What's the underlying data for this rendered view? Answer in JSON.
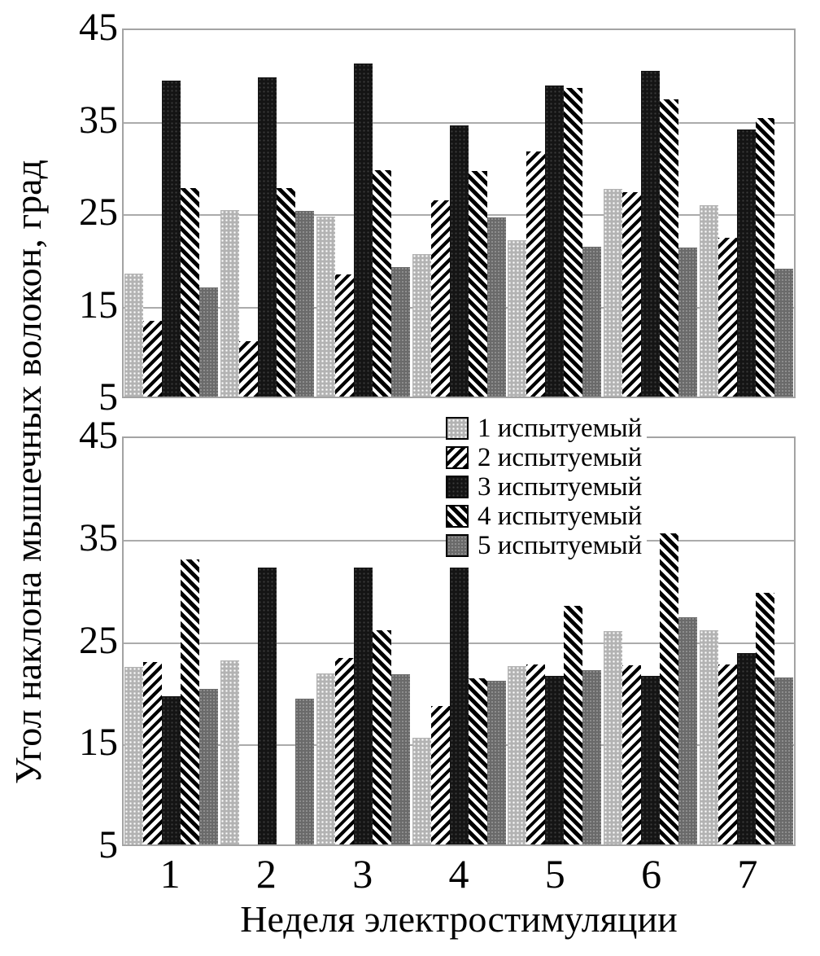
{
  "figure": {
    "y_axis_title": "Угол наклона мышечных волокон, град",
    "x_axis_title": "Неделя электростимуляции",
    "y_tick_labels": [
      "45",
      "35",
      "25",
      "15",
      "5"
    ],
    "x_tick_labels": [
      "1",
      "2",
      "3",
      "4",
      "5",
      "6",
      "7"
    ]
  },
  "legend": {
    "items": [
      {
        "label": "1 испытуемый",
        "pattern": "s1",
        "icon": "light-gray-dot-swatch-icon"
      },
      {
        "label": "2 испытуемый",
        "pattern": "s2",
        "icon": "forward-diagonal-hatch-swatch-icon"
      },
      {
        "label": "3 испытуемый",
        "pattern": "s3",
        "icon": "black-dot-swatch-icon"
      },
      {
        "label": "4 испытуемый",
        "pattern": "s4",
        "icon": "backward-diagonal-hatch-swatch-icon"
      },
      {
        "label": "5 испытуемый",
        "pattern": "s5",
        "icon": "dark-gray-dot-swatch-icon"
      }
    ]
  },
  "colors": {
    "background": "#ffffff",
    "text": "#000000",
    "plot_border": "#a3a3a3",
    "gridline": "#ababab",
    "series1_base": "#b3b3b3",
    "series1_dot": "#ffffff",
    "series2_stripe": "#000000",
    "series2_bg": "#ffffff",
    "series3_base": "#141414",
    "series3_dot": "#3c3c3c",
    "series4_stripe": "#000000",
    "series4_bg": "#ffffff",
    "series5_base": "#6a6a6a",
    "series5_dot": "#909090"
  },
  "chart_data": [
    {
      "type": "bar",
      "panel": "top",
      "title": "",
      "xlabel": "Неделя электростимуляции",
      "ylabel": "Угол наклона мышечных волокон, град",
      "categories": [
        "1",
        "2",
        "3",
        "4",
        "5",
        "6",
        "7"
      ],
      "ylim": [
        5,
        45
      ],
      "yticks": [
        45,
        35,
        25,
        15,
        5
      ],
      "grid": true,
      "legend_position": "top-of-bottom-panel",
      "series": [
        {
          "name": "1 испытуемый",
          "values": [
            18.3,
            25.2,
            24.5,
            20.4,
            21.9,
            27.5,
            25.7
          ]
        },
        {
          "name": "2 испытуемый",
          "values": [
            13.2,
            11.0,
            18.2,
            26.2,
            31.5,
            27.1,
            22.2
          ]
        },
        {
          "name": "3 испытуемый",
          "values": [
            39.2,
            39.5,
            41.0,
            34.3,
            38.7,
            40.2,
            33.9
          ]
        },
        {
          "name": "4 испытуемый",
          "values": [
            27.6,
            27.6,
            29.5,
            29.4,
            38.4,
            37.2,
            35.1
          ]
        },
        {
          "name": "5 испытуемый",
          "values": [
            16.8,
            25.1,
            19.0,
            24.4,
            21.2,
            21.1,
            18.8
          ]
        }
      ]
    },
    {
      "type": "bar",
      "panel": "bottom",
      "title": "",
      "xlabel": "Неделя электростимуляции",
      "ylabel": "Угол наклона мышечных волокон, град",
      "categories": [
        "1",
        "2",
        "3",
        "4",
        "5",
        "6",
        "7"
      ],
      "ylim": [
        5,
        45
      ],
      "yticks": [
        45,
        35,
        25,
        15,
        5
      ],
      "grid": true,
      "series": [
        {
          "name": "1 испытуемый",
          "values": [
            22.3,
            23.0,
            21.7,
            15.4,
            22.4,
            25.8,
            25.9
          ]
        },
        {
          "name": "2 испытуемый",
          "values": [
            22.8,
            0,
            23.2,
            18.5,
            22.6,
            22.5,
            22.6
          ]
        },
        {
          "name": "3 испытуемый",
          "values": [
            19.5,
            32.0,
            32.0,
            32.0,
            21.5,
            21.5,
            23.7
          ]
        },
        {
          "name": "4 испытуемый",
          "values": [
            32.8,
            0,
            25.9,
            21.2,
            28.3,
            35.4,
            29.6
          ]
        },
        {
          "name": "5 испытуемый",
          "values": [
            20.2,
            19.2,
            21.6,
            21.0,
            22.0,
            27.2,
            21.3
          ]
        }
      ]
    }
  ]
}
